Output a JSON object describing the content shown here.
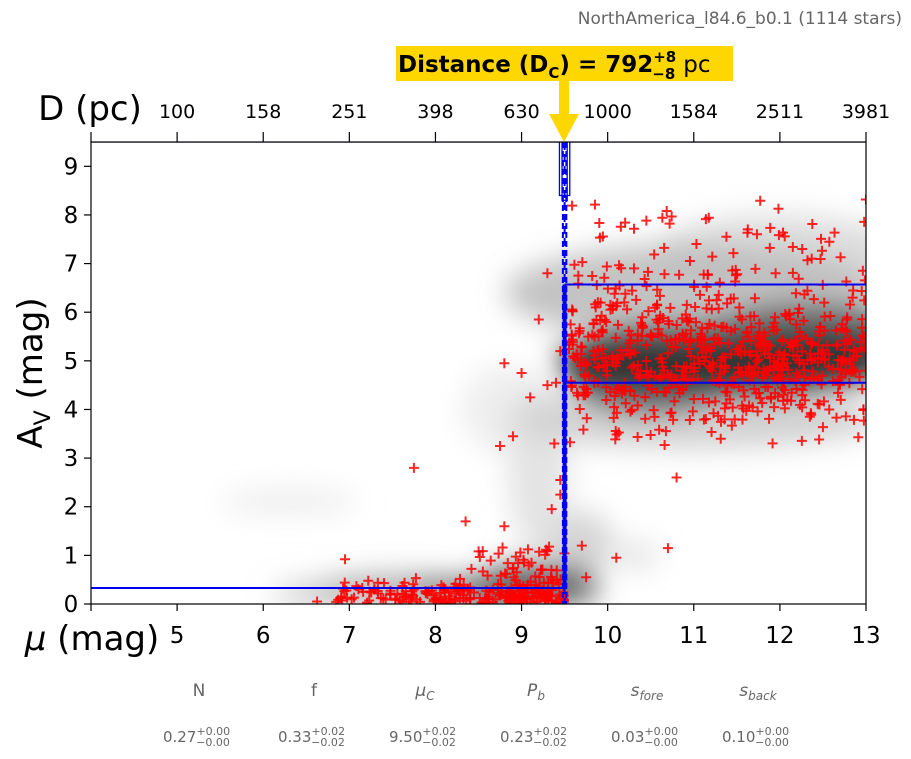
{
  "chart_data": {
    "type": "scatter",
    "title": "NorthAmerica_l84.6_b0.1 (1114 stars)",
    "callout": {
      "prefix": "Distance (D",
      "sub": "C",
      "mid": ") = 792",
      "sup": "+8",
      "inf": "−8",
      "unit": "pc"
    },
    "xlabel": "μ (mag)",
    "xlabel_symbol": "μ",
    "xlabel_rest": " (mag)",
    "ylabel": "A_V (mag)",
    "ylabel_base": "A",
    "ylabel_sub": "V",
    "ylabel_rest": " (mag)",
    "top_axis_label": "D (pc)",
    "xlim": [
      4,
      13
    ],
    "ylim": [
      0,
      9.5
    ],
    "x_ticks": [
      "5",
      "6",
      "7",
      "8",
      "9",
      "10",
      "11",
      "12",
      "13"
    ],
    "y_ticks": [
      "0",
      "1",
      "2",
      "3",
      "4",
      "5",
      "6",
      "7",
      "8",
      "9"
    ],
    "top_ticks": [
      "100",
      "158",
      "251",
      "398",
      "630",
      "1000",
      "1584",
      "2511",
      "3981"
    ],
    "distance_modulus": 9.5,
    "foreground_av": 0.33,
    "background_band": [
      4.55,
      6.57
    ],
    "points_color": "#ff0000",
    "line_color": "#0000ee",
    "callout_color": "#ffd700",
    "params": [
      {
        "name": "N",
        "value": "0.27",
        "plus": "+0.00",
        "minus": "−0.00"
      },
      {
        "name": "f",
        "value": "0.33",
        "plus": "+0.02",
        "minus": "−0.02"
      },
      {
        "name": "μ",
        "sub": "C",
        "value": "9.50",
        "plus": "+0.02",
        "minus": "−0.02"
      },
      {
        "name": "P",
        "sub": "b",
        "value": "0.23",
        "plus": "+0.02",
        "minus": "−0.02"
      },
      {
        "name": "s",
        "sub": "fore",
        "value": "0.03",
        "plus": "+0.00",
        "minus": "−0.00"
      },
      {
        "name": "s",
        "sub": "back",
        "value": "0.10",
        "plus": "+0.00",
        "minus": "−0.00"
      }
    ]
  }
}
